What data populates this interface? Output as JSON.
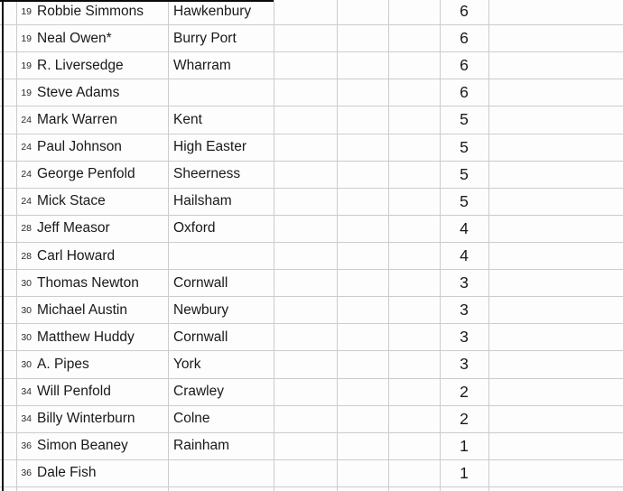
{
  "table": {
    "rows": [
      {
        "rank": "19",
        "name": "Robbie Simmons",
        "town": "Hawkenbury",
        "score": "6"
      },
      {
        "rank": "19",
        "name": "Neal Owen*",
        "town": "Burry Port",
        "score": "6"
      },
      {
        "rank": "19",
        "name": "R. Liversedge",
        "town": "Wharram",
        "score": "6"
      },
      {
        "rank": "19",
        "name": "Steve Adams",
        "town": "",
        "score": "6"
      },
      {
        "rank": "24",
        "name": "Mark Warren",
        "town": "Kent",
        "score": "5"
      },
      {
        "rank": "24",
        "name": "Paul Johnson",
        "town": "High Easter",
        "score": "5"
      },
      {
        "rank": "24",
        "name": "George Penfold",
        "town": "Sheerness",
        "score": "5"
      },
      {
        "rank": "24",
        "name": "Mick Stace",
        "town": "Hailsham",
        "score": "5"
      },
      {
        "rank": "28",
        "name": "Jeff Measor",
        "town": "Oxford",
        "score": "4"
      },
      {
        "rank": "28",
        "name": "Carl Howard",
        "town": "",
        "score": "4"
      },
      {
        "rank": "30",
        "name": "Thomas Newton",
        "town": "Cornwall",
        "score": "3"
      },
      {
        "rank": "30",
        "name": "Michael Austin",
        "town": "Newbury",
        "score": "3"
      },
      {
        "rank": "30",
        "name": "Matthew Huddy",
        "town": "Cornwall",
        "score": "3"
      },
      {
        "rank": "30",
        "name": "A. Pipes",
        "town": "York",
        "score": "3"
      },
      {
        "rank": "34",
        "name": "Will Penfold",
        "town": "Crawley",
        "score": "2"
      },
      {
        "rank": "34",
        "name": "Billy Winterburn",
        "town": "Colne",
        "score": "2"
      },
      {
        "rank": "36",
        "name": "Simon Beaney",
        "town": "Rainham",
        "score": "1"
      },
      {
        "rank": "36",
        "name": "Dale Fish",
        "town": "",
        "score": "1"
      }
    ]
  },
  "colors": {
    "background": "#fdfdfd",
    "gridline": "#cccccc",
    "border": "#0a0a0a",
    "text": "#191919"
  }
}
